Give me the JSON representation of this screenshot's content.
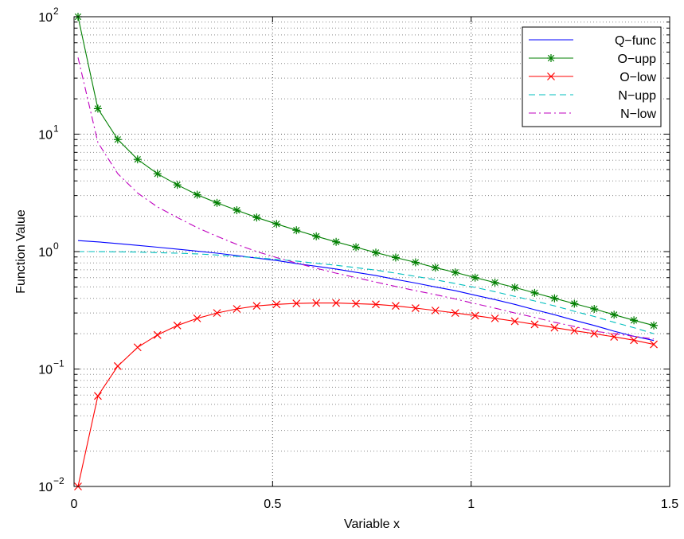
{
  "chart_data": {
    "type": "line",
    "title": "",
    "xlabel": "Variable x",
    "ylabel": "Function Value",
    "xlim": [
      0,
      1.5
    ],
    "ylim": [
      0.01,
      100
    ],
    "yscale": "log",
    "grid": true,
    "legend_position": "top-right",
    "x_ticks": [
      {
        "value": 0,
        "label": "0"
      },
      {
        "value": 0.5,
        "label": "0.5"
      },
      {
        "value": 1,
        "label": "1"
      },
      {
        "value": 1.5,
        "label": "1.5"
      }
    ],
    "y_ticks": [
      {
        "value": 0.01,
        "base": "10",
        "exp": "−2"
      },
      {
        "value": 0.1,
        "base": "10",
        "exp": "−1"
      },
      {
        "value": 1,
        "base": "10",
        "exp": "0"
      },
      {
        "value": 10,
        "base": "10",
        "exp": "1"
      },
      {
        "value": 100,
        "base": "10",
        "exp": "2"
      }
    ],
    "x": [
      0.01,
      0.06,
      0.11,
      0.16,
      0.21,
      0.26,
      0.31,
      0.36,
      0.41,
      0.46,
      0.51,
      0.56,
      0.61,
      0.66,
      0.71,
      0.76,
      0.81,
      0.86,
      0.91,
      0.96,
      1.01,
      1.06,
      1.11,
      1.16,
      1.21,
      1.26,
      1.31,
      1.36,
      1.41,
      1.46
    ],
    "series": [
      {
        "name": "Q−func",
        "color": "#0000ff",
        "line_style": "solid",
        "marker": "none",
        "values": [
          1.24,
          1.21,
          1.17,
          1.13,
          1.09,
          1.05,
          1.01,
          0.97,
          0.925,
          0.88,
          0.84,
          0.79,
          0.75,
          0.71,
          0.665,
          0.625,
          0.58,
          0.54,
          0.5,
          0.465,
          0.425,
          0.39,
          0.355,
          0.32,
          0.29,
          0.26,
          0.235,
          0.21,
          0.19,
          0.175
        ]
      },
      {
        "name": "O−upp",
        "color": "#007f00",
        "line_style": "solid",
        "marker": "star",
        "values": [
          100,
          16.5,
          9.0,
          6.1,
          4.6,
          3.7,
          3.05,
          2.6,
          2.25,
          1.95,
          1.72,
          1.52,
          1.35,
          1.21,
          1.09,
          0.98,
          0.89,
          0.81,
          0.73,
          0.665,
          0.6,
          0.545,
          0.495,
          0.445,
          0.4,
          0.36,
          0.325,
          0.29,
          0.26,
          0.235
        ]
      },
      {
        "name": "O−low",
        "color": "#ff0000",
        "line_style": "solid",
        "marker": "x",
        "values": [
          0.01,
          0.059,
          0.106,
          0.153,
          0.195,
          0.235,
          0.27,
          0.3,
          0.325,
          0.345,
          0.355,
          0.362,
          0.365,
          0.365,
          0.36,
          0.355,
          0.345,
          0.33,
          0.315,
          0.3,
          0.285,
          0.27,
          0.255,
          0.24,
          0.225,
          0.212,
          0.2,
          0.188,
          0.176,
          0.162
        ]
      },
      {
        "name": "N−upp",
        "color": "#00bfbf",
        "line_style": "dashed",
        "marker": "none",
        "values": [
          1.0,
          1.0,
          0.995,
          0.99,
          0.98,
          0.97,
          0.955,
          0.935,
          0.91,
          0.885,
          0.86,
          0.83,
          0.795,
          0.765,
          0.73,
          0.695,
          0.655,
          0.615,
          0.575,
          0.535,
          0.495,
          0.455,
          0.415,
          0.38,
          0.345,
          0.31,
          0.28,
          0.25,
          0.225,
          0.2
        ]
      },
      {
        "name": "N−low",
        "color": "#bf00bf",
        "line_style": "dashdot",
        "marker": "none",
        "values": [
          45,
          8.5,
          4.6,
          3.15,
          2.4,
          1.95,
          1.6,
          1.35,
          1.15,
          1.0,
          0.89,
          0.8,
          0.72,
          0.655,
          0.6,
          0.55,
          0.505,
          0.465,
          0.43,
          0.395,
          0.36,
          0.33,
          0.3,
          0.275,
          0.25,
          0.23,
          0.21,
          0.2,
          0.19,
          0.18
        ]
      }
    ]
  }
}
